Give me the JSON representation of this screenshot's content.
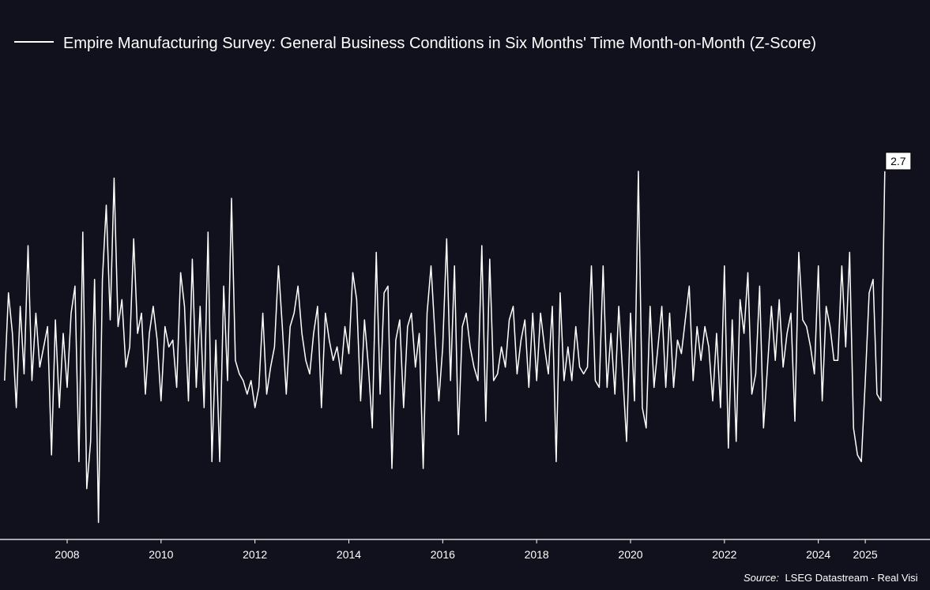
{
  "chart_data": {
    "type": "line",
    "title": "",
    "xlabel": "",
    "ylabel": "",
    "series": [
      {
        "name": "Empire Manufacturing Survey: General Business Conditions in Six Months' Time Month-on-Month (Z-Score)",
        "color": "#ffffff",
        "x": [
          "2006-09",
          "2006-10",
          "2006-11",
          "2006-12",
          "2007-01",
          "2007-02",
          "2007-03",
          "2007-04",
          "2007-05",
          "2007-06",
          "2007-07",
          "2007-08",
          "2007-09",
          "2007-10",
          "2007-11",
          "2007-12",
          "2008-01",
          "2008-02",
          "2008-03",
          "2008-04",
          "2008-05",
          "2008-06",
          "2008-07",
          "2008-08",
          "2008-09",
          "2008-10",
          "2008-11",
          "2008-12",
          "2009-01",
          "2009-02",
          "2009-03",
          "2009-04",
          "2009-05",
          "2009-06",
          "2009-07",
          "2009-08",
          "2009-09",
          "2009-10",
          "2009-11",
          "2009-12",
          "2010-01",
          "2010-02",
          "2010-03",
          "2010-04",
          "2010-05",
          "2010-06",
          "2010-07",
          "2010-08",
          "2010-09",
          "2010-10",
          "2010-11",
          "2010-12",
          "2011-01",
          "2011-02",
          "2011-03",
          "2011-04",
          "2011-05",
          "2011-06",
          "2011-07",
          "2011-08",
          "2011-09",
          "2011-10",
          "2011-11",
          "2011-12",
          "2012-01",
          "2012-02",
          "2012-03",
          "2012-04",
          "2012-05",
          "2012-06",
          "2012-07",
          "2012-08",
          "2012-09",
          "2012-10",
          "2012-11",
          "2012-12",
          "2013-01",
          "2013-02",
          "2013-03",
          "2013-04",
          "2013-05",
          "2013-06",
          "2013-07",
          "2013-08",
          "2013-09",
          "2013-10",
          "2013-11",
          "2013-12",
          "2014-01",
          "2014-02",
          "2014-03",
          "2014-04",
          "2014-05",
          "2014-06",
          "2014-07",
          "2014-08",
          "2014-09",
          "2014-10",
          "2014-11",
          "2014-12",
          "2015-01",
          "2015-02",
          "2015-03",
          "2015-04",
          "2015-05",
          "2015-06",
          "2015-07",
          "2015-08",
          "2015-09",
          "2015-10",
          "2015-11",
          "2015-12",
          "2016-01",
          "2016-02",
          "2016-03",
          "2016-04",
          "2016-05",
          "2016-06",
          "2016-07",
          "2016-08",
          "2016-09",
          "2016-10",
          "2016-11",
          "2016-12",
          "2017-01",
          "2017-02",
          "2017-03",
          "2017-04",
          "2017-05",
          "2017-06",
          "2017-07",
          "2017-08",
          "2017-09",
          "2017-10",
          "2017-11",
          "2017-12",
          "2018-01",
          "2018-02",
          "2018-03",
          "2018-04",
          "2018-05",
          "2018-06",
          "2018-07",
          "2018-08",
          "2018-09",
          "2018-10",
          "2018-11",
          "2018-12",
          "2019-01",
          "2019-02",
          "2019-03",
          "2019-04",
          "2019-05",
          "2019-06",
          "2019-07",
          "2019-08",
          "2019-09",
          "2019-10",
          "2019-11",
          "2019-12",
          "2020-01",
          "2020-02",
          "2020-03",
          "2020-04",
          "2020-05",
          "2020-06",
          "2020-07",
          "2020-08",
          "2020-09",
          "2020-10",
          "2020-11",
          "2020-12",
          "2021-01",
          "2021-02",
          "2021-03",
          "2021-04",
          "2021-05",
          "2021-06",
          "2021-07",
          "2021-08",
          "2021-09",
          "2021-10",
          "2021-11",
          "2021-12",
          "2022-01",
          "2022-02",
          "2022-03",
          "2022-04",
          "2022-05",
          "2022-06",
          "2022-07",
          "2022-08",
          "2022-09",
          "2022-10",
          "2022-11",
          "2022-12",
          "2023-01",
          "2023-02",
          "2023-03",
          "2023-04",
          "2023-05",
          "2023-06",
          "2023-07",
          "2023-08",
          "2023-09",
          "2023-10",
          "2023-11",
          "2023-12",
          "2024-01",
          "2024-02",
          "2024-03",
          "2024-04",
          "2024-05",
          "2024-06",
          "2024-07",
          "2024-08",
          "2024-09",
          "2024-10",
          "2024-11",
          "2024-12",
          "2025-01",
          "2025-02",
          "2025-03",
          "2025-04",
          "2025-05",
          "2025-06"
        ],
        "values": [
          -0.4,
          0.9,
          0.3,
          -0.8,
          0.7,
          -0.3,
          1.6,
          -0.4,
          0.6,
          -0.2,
          0.1,
          0.4,
          -1.5,
          0.5,
          -0.8,
          0.3,
          -0.5,
          0.6,
          1.0,
          -1.6,
          1.8,
          -2.0,
          -1.3,
          1.1,
          -2.5,
          1.1,
          2.2,
          0.5,
          2.6,
          0.4,
          0.8,
          -0.2,
          0.1,
          1.7,
          0.3,
          0.6,
          -0.6,
          0.3,
          0.7,
          0.2,
          -0.7,
          0.4,
          0.1,
          0.2,
          -0.5,
          1.2,
          0.7,
          -0.7,
          1.4,
          -0.5,
          0.7,
          -0.8,
          1.8,
          -1.6,
          0.2,
          -1.6,
          1.0,
          -0.4,
          2.3,
          -0.1,
          -0.3,
          -0.4,
          -0.6,
          -0.4,
          -0.8,
          -0.5,
          0.6,
          -0.6,
          -0.2,
          0.1,
          1.3,
          0.4,
          -0.6,
          0.4,
          0.6,
          1.0,
          0.3,
          -0.1,
          -0.3,
          0.3,
          0.7,
          -0.8,
          0.6,
          0.2,
          -0.1,
          0.1,
          -0.3,
          0.4,
          0.0,
          1.2,
          0.8,
          -0.7,
          0.5,
          -0.2,
          -1.1,
          1.5,
          -0.6,
          0.9,
          1.0,
          -1.7,
          0.2,
          0.5,
          -0.8,
          0.4,
          0.6,
          -0.2,
          0.3,
          -1.7,
          0.6,
          1.3,
          0.3,
          -0.7,
          0.1,
          1.7,
          -0.4,
          1.3,
          -1.2,
          0.4,
          0.6,
          0.1,
          -0.2,
          -0.4,
          1.6,
          -1.0,
          1.4,
          -0.4,
          -0.3,
          0.1,
          -0.2,
          0.5,
          0.7,
          -0.3,
          0.2,
          0.5,
          -0.5,
          0.6,
          -0.4,
          0.6,
          0.1,
          -0.3,
          0.7,
          -1.6,
          0.9,
          -0.4,
          0.1,
          -0.4,
          0.4,
          -0.2,
          -0.3,
          -0.2,
          1.3,
          -0.4,
          -0.5,
          1.3,
          -0.5,
          0.3,
          -0.6,
          0.7,
          -0.3,
          -1.3,
          0.6,
          -0.7,
          2.7,
          -0.8,
          -1.1,
          0.7,
          -0.5,
          0.1,
          0.7,
          -0.5,
          0.6,
          -0.5,
          0.2,
          0.0,
          0.5,
          1.0,
          -0.4,
          0.4,
          -0.1,
          0.4,
          0.1,
          -0.7,
          0.3,
          -0.8,
          1.3,
          -1.4,
          0.5,
          -1.3,
          0.8,
          0.3,
          1.2,
          -0.6,
          -0.3,
          1.0,
          -1.1,
          -0.2,
          0.7,
          -0.1,
          0.8,
          -0.2,
          0.3,
          0.6,
          -1.0,
          1.5,
          0.5,
          0.4,
          0.1,
          -0.3,
          1.3,
          -0.7,
          0.7,
          0.4,
          -0.1,
          -0.1,
          1.3,
          0.1,
          1.5,
          -1.1,
          -1.5,
          -1.6,
          -0.4,
          0.9,
          1.1,
          -0.6,
          -0.7,
          2.7
        ],
        "last_value_label": "2.7"
      }
    ],
    "x_ticks": [
      "2008",
      "2010",
      "2012",
      "2014",
      "2016",
      "2018",
      "2020",
      "2022",
      "2024",
      "2025"
    ],
    "ylim": [
      -2.6,
      3.6
    ],
    "grid": false,
    "legend_position": "top-left"
  },
  "source": {
    "prefix": "Source:",
    "text": "LSEG Datastream - Real Visi"
  }
}
